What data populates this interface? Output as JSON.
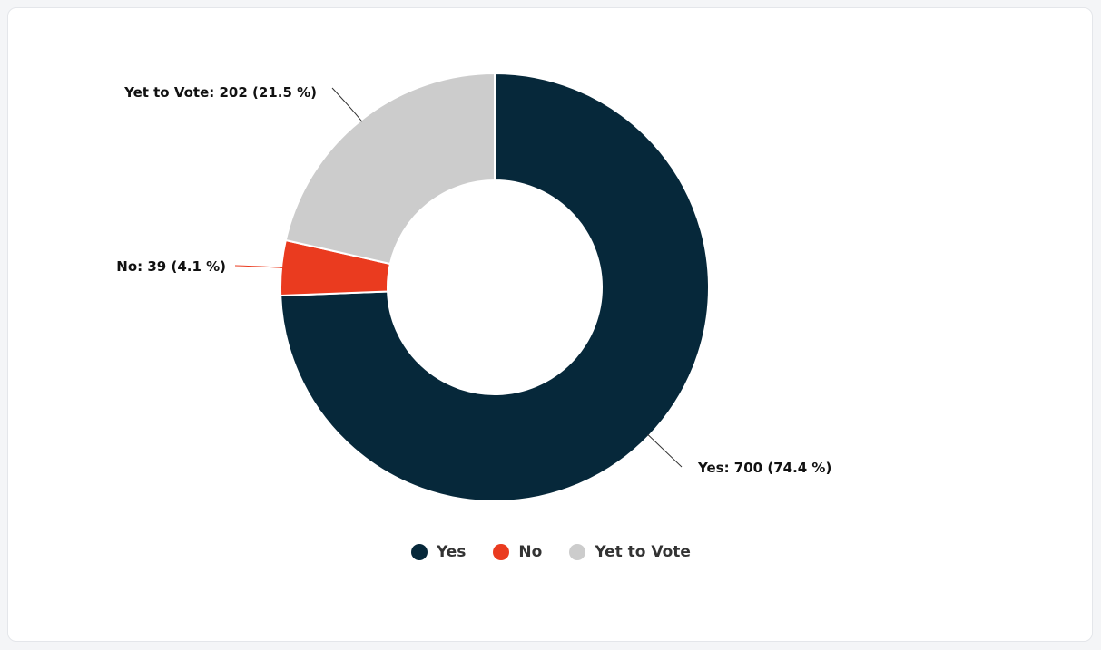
{
  "chart_data": {
    "type": "pie",
    "variant": "donut",
    "title": "",
    "categories": [
      "Yes",
      "No",
      "Yet to Vote"
    ],
    "values": [
      700,
      39,
      202
    ],
    "percentages": [
      74.4,
      4.1,
      21.5
    ],
    "colors": [
      "#06283a",
      "#ea3b1f",
      "#cccccc"
    ],
    "labels": [
      "Yes: 700 (74.4 %)",
      "No: 39 (4.1 %)",
      "Yet to Vote: 202 (21.5 %)"
    ],
    "legend_position": "bottom-center"
  },
  "legend": {
    "items": [
      {
        "label": "Yes",
        "color": "#06283a"
      },
      {
        "label": "No",
        "color": "#ea3b1f"
      },
      {
        "label": "Yet to Vote",
        "color": "#cccccc"
      }
    ]
  }
}
